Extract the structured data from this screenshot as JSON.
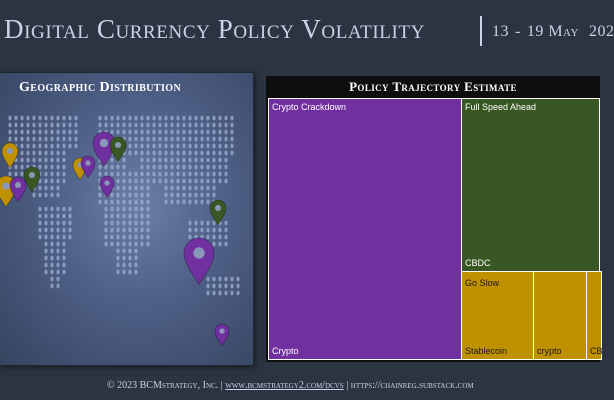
{
  "header": {
    "title": "Digital Currency Policy Volatility",
    "date_start": "13",
    "date_separator": "-",
    "date_end": "19",
    "month": "May",
    "year": "202"
  },
  "map": {
    "title": "Geographic Distribution",
    "pins": [
      {
        "color": "#bf9000",
        "icon": "map-pin-icon"
      },
      {
        "color": "#bf9000",
        "icon": "map-pin-icon"
      },
      {
        "color": "#7030a0",
        "icon": "map-pin-icon"
      },
      {
        "color": "#385723",
        "icon": "map-pin-icon"
      },
      {
        "color": "#bf9000",
        "icon": "map-pin-icon"
      },
      {
        "color": "#7030a0",
        "icon": "map-pin-icon"
      },
      {
        "color": "#7030a0",
        "icon": "map-pin-icon"
      },
      {
        "color": "#385723",
        "icon": "map-pin-icon"
      },
      {
        "color": "#7030a0",
        "icon": "map-pin-icon"
      },
      {
        "color": "#385723",
        "icon": "map-pin-icon"
      },
      {
        "color": "#7030a0",
        "icon": "map-pin-icon"
      },
      {
        "color": "#7030a0",
        "icon": "map-pin-icon"
      }
    ]
  },
  "treemap": {
    "title": "Policy Trajectory Estimate",
    "groups": {
      "crypto_crackdown": "Crypto Crackdown",
      "full_speed_ahead": "Full Speed Ahead",
      "go_slow": "Go Slow"
    },
    "items": {
      "crypto": "Crypto",
      "cbdc": "CBDC",
      "stablecoin": "Stablecoin",
      "crypto_small": "crypto",
      "cbdc_clipped": "CB"
    }
  },
  "footer": {
    "copyright": "© 2023 BCMstrategy, Inc.",
    "sep": "|",
    "link1": "www.bcmstrategy2.com/dcvs",
    "link2": "https://chainreg.substack.com"
  },
  "colors": {
    "crackdown": "#7030a0",
    "full_speed": "#385723",
    "go_slow": "#bf9000"
  }
}
